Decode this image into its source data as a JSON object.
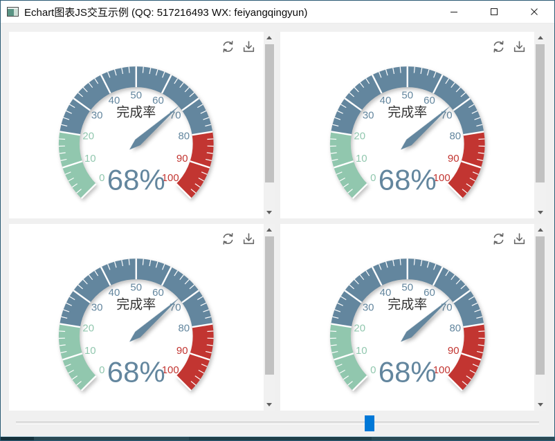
{
  "window": {
    "title": "Echart图表JS交互示例 (QQ: 517216493 WX: feiyangqingyun)",
    "buttons": [
      "minimize",
      "maximize",
      "close"
    ]
  },
  "icons": {
    "titlebar": [
      "app-icon",
      "minimize-icon",
      "maximize-icon",
      "close-icon"
    ],
    "panel_toolbox": [
      "refresh-icon",
      "download-icon"
    ],
    "scrollbar": [
      "scroll-up-icon",
      "scroll-down-icon"
    ]
  },
  "toolbox": {
    "buttons": [
      {
        "name": "refresh"
      },
      {
        "name": "save-as-image"
      }
    ]
  },
  "chart_data": [
    {
      "type": "gauge",
      "title": "完成率",
      "value": 68,
      "unit": "%",
      "detail_text": "68%",
      "min": 0,
      "max": 100,
      "start_angle": 225,
      "end_angle": -45,
      "split_number": 10,
      "minor_ticks_per_split": 5,
      "axis_labels": [
        "0",
        "10",
        "20",
        "30",
        "40",
        "50",
        "60",
        "70",
        "80",
        "90",
        "100"
      ],
      "segments": [
        {
          "up_to": 20,
          "color": "#91c7ae"
        },
        {
          "up_to": 80,
          "color": "#63869e"
        },
        {
          "up_to": 100,
          "color": "#c23531"
        }
      ],
      "needle_color": "#63869e",
      "detail_color": "#63869e",
      "title_color": "#333333",
      "tick_color": "#ffffff"
    },
    {
      "type": "gauge",
      "title": "完成率",
      "value": 68,
      "unit": "%",
      "detail_text": "68%",
      "min": 0,
      "max": 100,
      "start_angle": 225,
      "end_angle": -45,
      "split_number": 10,
      "minor_ticks_per_split": 5,
      "axis_labels": [
        "0",
        "10",
        "20",
        "30",
        "40",
        "50",
        "60",
        "70",
        "80",
        "90",
        "100"
      ],
      "segments": [
        {
          "up_to": 20,
          "color": "#91c7ae"
        },
        {
          "up_to": 80,
          "color": "#63869e"
        },
        {
          "up_to": 100,
          "color": "#c23531"
        }
      ],
      "needle_color": "#63869e",
      "detail_color": "#63869e",
      "title_color": "#333333",
      "tick_color": "#ffffff"
    },
    {
      "type": "gauge",
      "title": "完成率",
      "value": 68,
      "unit": "%",
      "detail_text": "68%",
      "min": 0,
      "max": 100,
      "start_angle": 225,
      "end_angle": -45,
      "split_number": 10,
      "minor_ticks_per_split": 5,
      "axis_labels": [
        "0",
        "10",
        "20",
        "30",
        "40",
        "50",
        "60",
        "70",
        "80",
        "90",
        "100"
      ],
      "segments": [
        {
          "up_to": 20,
          "color": "#91c7ae"
        },
        {
          "up_to": 80,
          "color": "#63869e"
        },
        {
          "up_to": 100,
          "color": "#c23531"
        }
      ],
      "needle_color": "#63869e",
      "detail_color": "#63869e",
      "title_color": "#333333",
      "tick_color": "#ffffff"
    },
    {
      "type": "gauge",
      "title": "完成率",
      "value": 68,
      "unit": "%",
      "detail_text": "68%",
      "min": 0,
      "max": 100,
      "start_angle": 225,
      "end_angle": -45,
      "split_number": 10,
      "minor_ticks_per_split": 5,
      "axis_labels": [
        "0",
        "10",
        "20",
        "30",
        "40",
        "50",
        "60",
        "70",
        "80",
        "90",
        "100"
      ],
      "segments": [
        {
          "up_to": 20,
          "color": "#91c7ae"
        },
        {
          "up_to": 80,
          "color": "#63869e"
        },
        {
          "up_to": 100,
          "color": "#c23531"
        }
      ],
      "needle_color": "#63869e",
      "detail_color": "#63869e",
      "title_color": "#333333",
      "tick_color": "#ffffff"
    }
  ],
  "scrollbar_state": {
    "thumb_top_percent": 6.7,
    "thumb_height_percent": 74
  },
  "slider": {
    "orientation": "horizontal",
    "value_percent": 67.2,
    "handle_color": "#0078d7"
  },
  "colors": {
    "client_bg": "#f0f0f0",
    "panel_bg": "#ffffff",
    "window_border": "#2a5a74",
    "scrollbar_track": "#f1f1f1",
    "scrollbar_thumb": "#c1c1c1",
    "taskbar_strip": "#27454e"
  }
}
